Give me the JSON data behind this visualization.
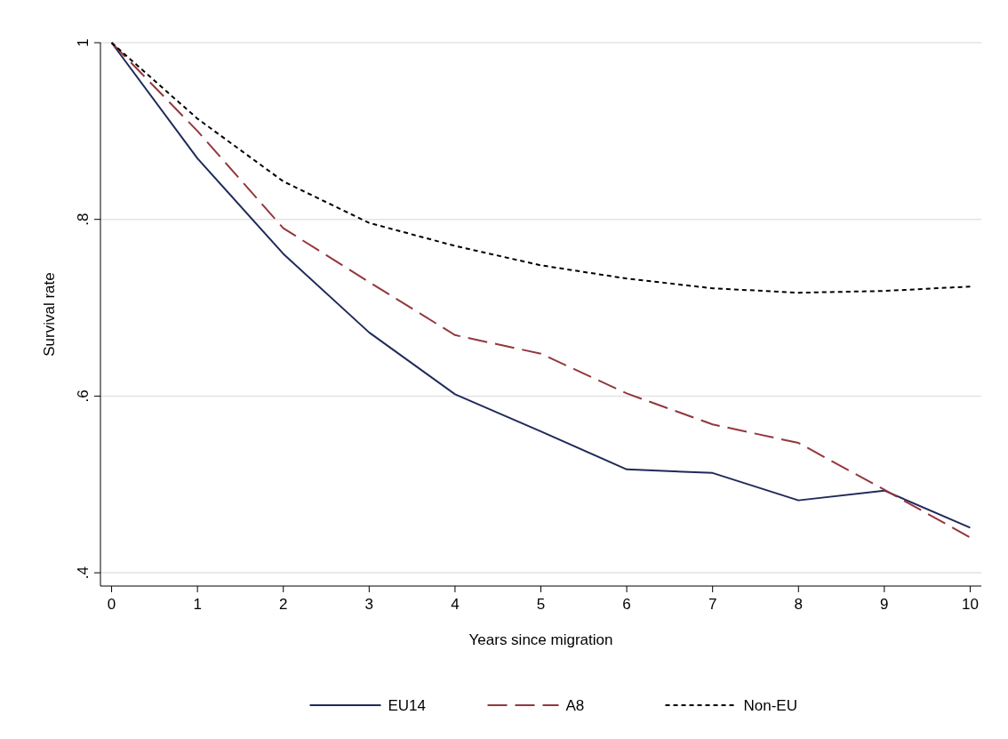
{
  "chart_data": {
    "type": "line",
    "xlabel": "Years since migration",
    "ylabel": "Survival rate",
    "x": [
      0,
      1,
      2,
      3,
      4,
      5,
      6,
      7,
      8,
      9,
      10
    ],
    "series": [
      {
        "name": "EU14",
        "color": "#1f2a5a",
        "line_style": "solid",
        "values": [
          1,
          0.869,
          0.761,
          0.672,
          0.602,
          0.56,
          0.517,
          0.513,
          0.482,
          0.493,
          0.451
        ]
      },
      {
        "name": "A8",
        "color": "#93373d",
        "line_style": "dashed",
        "values": [
          1,
          0.9,
          0.79,
          0.729,
          0.669,
          0.648,
          0.603,
          0.568,
          0.547,
          0.494,
          0.44
        ]
      },
      {
        "name": "Non-EU",
        "color": "#000000",
        "line_style": "dotted",
        "values": [
          1,
          0.914,
          0.843,
          0.796,
          0.77,
          0.748,
          0.733,
          0.722,
          0.717,
          0.719,
          0.724
        ]
      }
    ],
    "xlim": [
      -0.13,
      10.13
    ],
    "ylim": [
      0.385,
      1
    ],
    "xticks": [
      0,
      1,
      2,
      3,
      4,
      5,
      6,
      7,
      8,
      9,
      10
    ],
    "yticks": [
      {
        "value": 0.4,
        "label": ".4"
      },
      {
        "value": 0.6,
        "label": ".6"
      },
      {
        "value": 0.8,
        "label": ".8"
      },
      1
    ],
    "grid": "y",
    "legend": "bottom",
    "marker": "none"
  }
}
